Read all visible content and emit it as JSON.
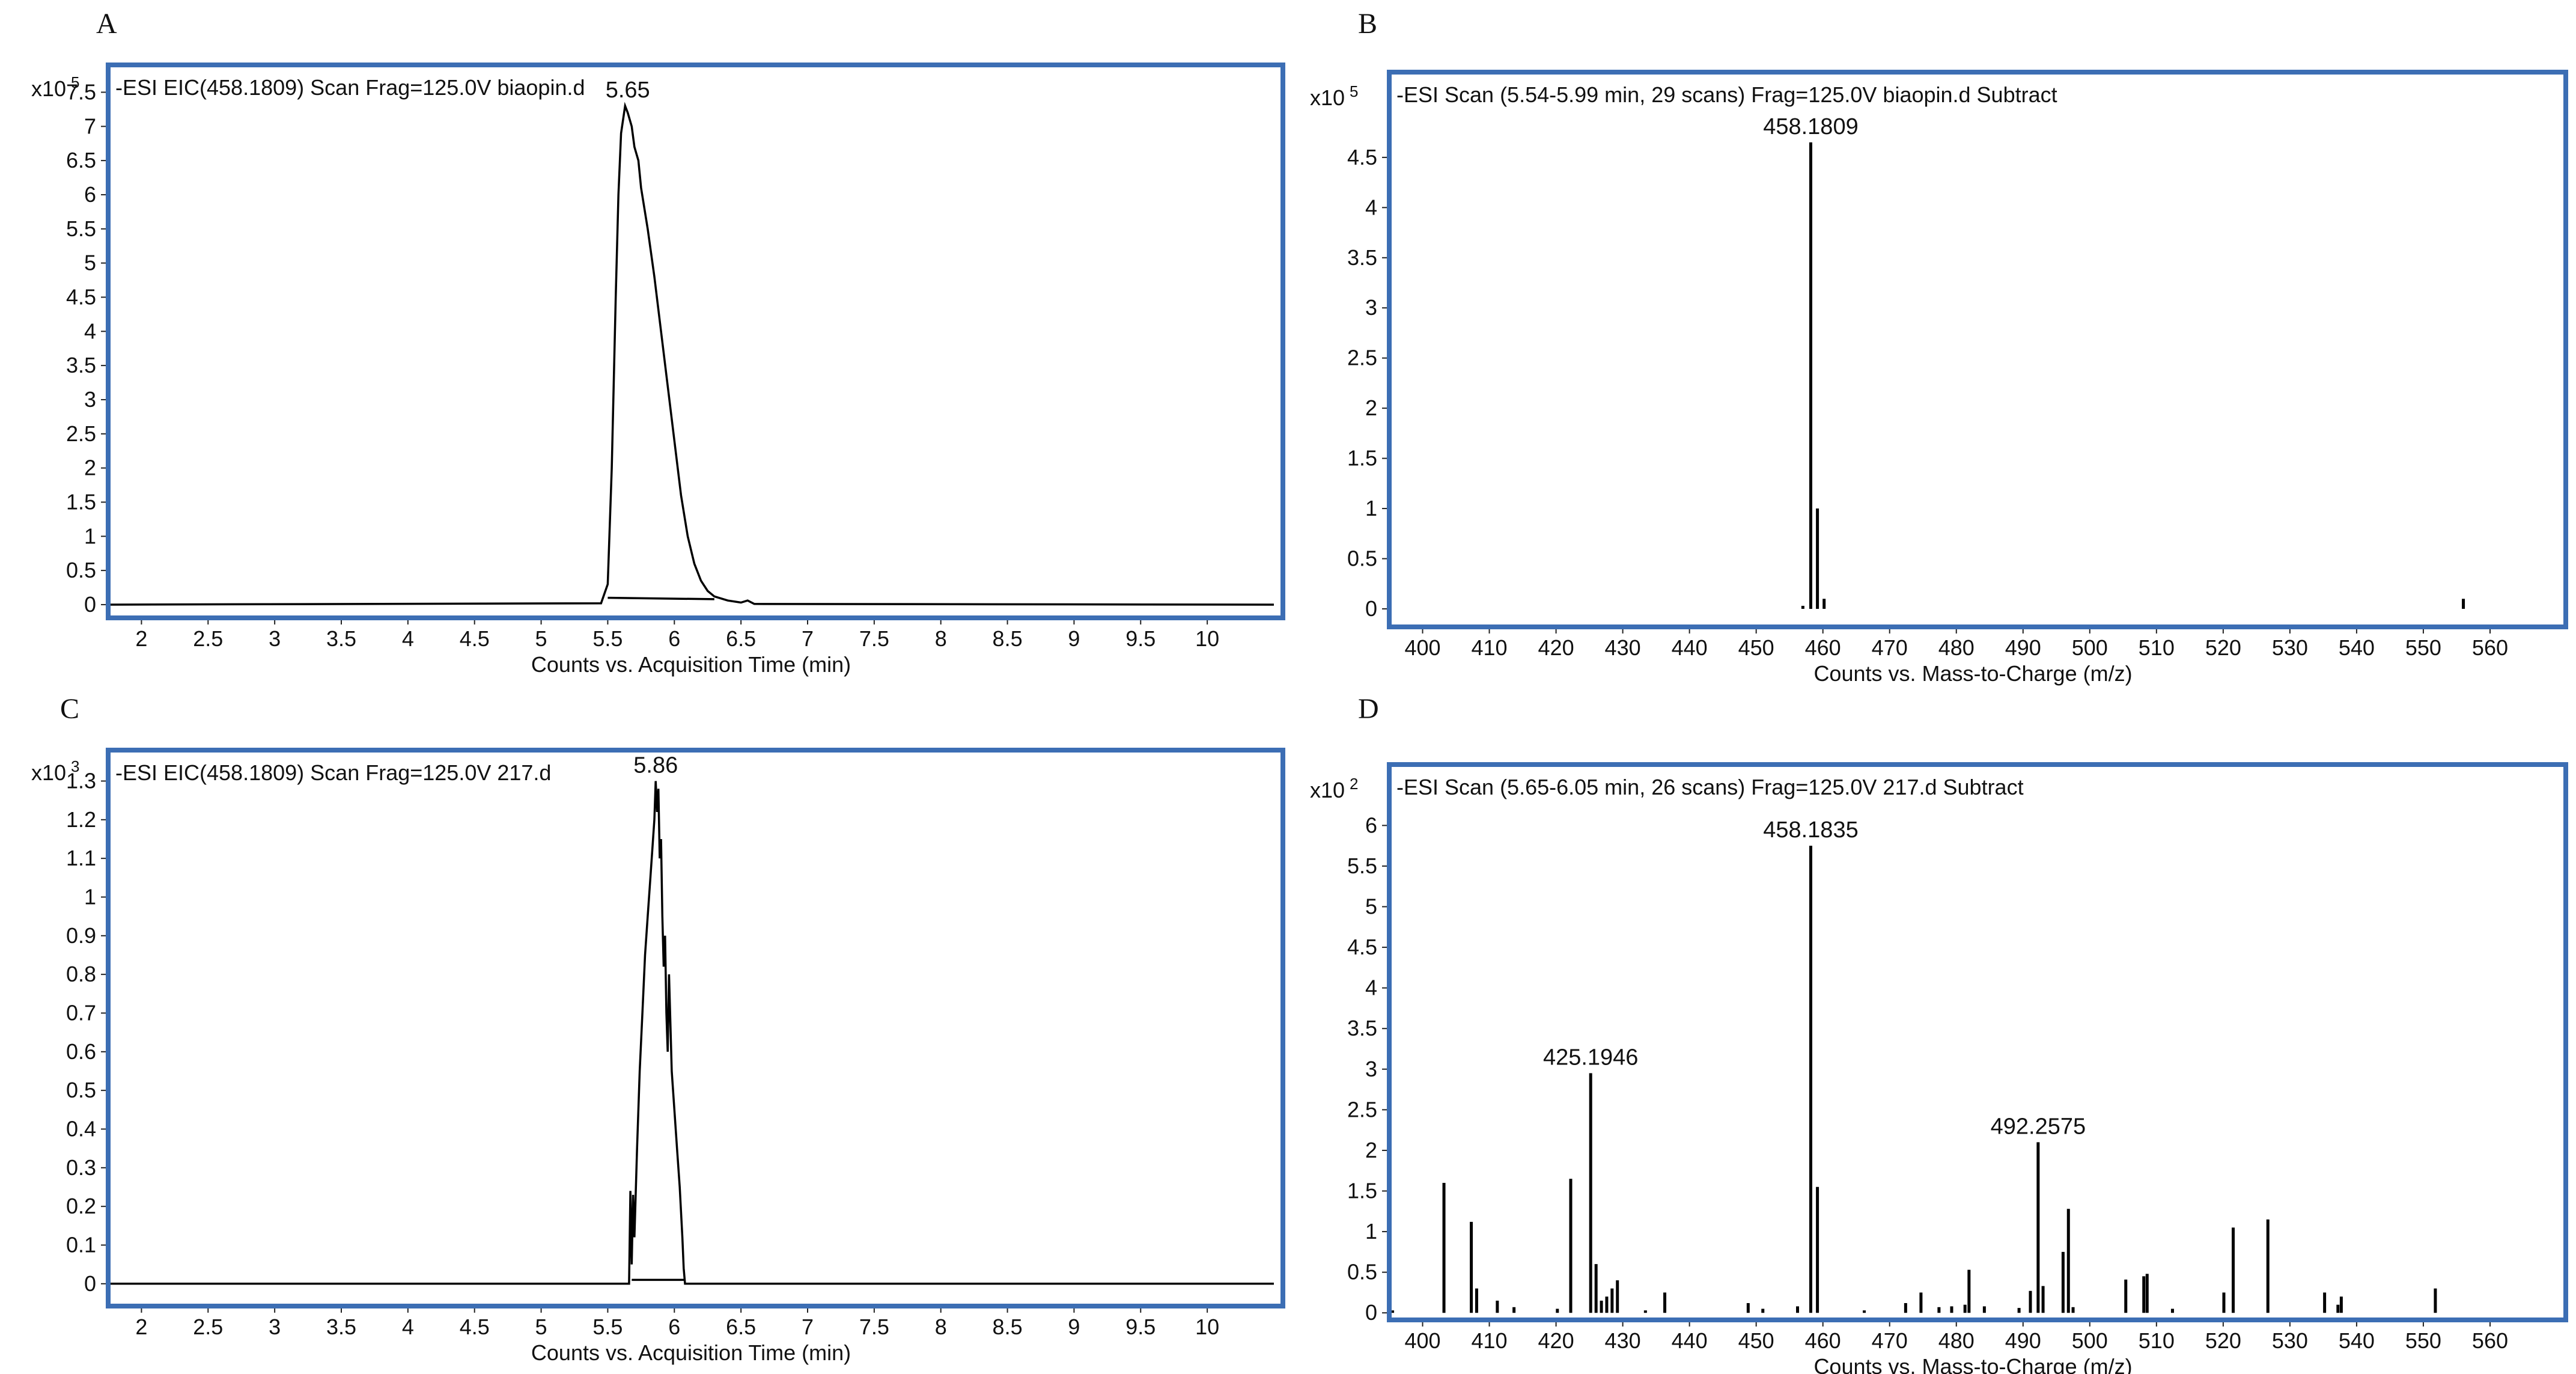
{
  "chart_data": [
    {
      "panel": "A",
      "type": "line",
      "annotation": "-ESI EIC(458.1809) Scan Frag=125.0V biaopin.d",
      "y_scale": {
        "base": "x10",
        "exponent": "5"
      },
      "xlabel": "Counts vs. Acquisition Time (min)",
      "xlim": [
        1.75,
        10.5
      ],
      "ylim": [
        -0.15,
        7.9
      ],
      "x_ticks": [
        2,
        2.5,
        3,
        3.5,
        4,
        4.5,
        5,
        5.5,
        6,
        6.5,
        7,
        7.5,
        8,
        8.5,
        9,
        9.5,
        10
      ],
      "x_tick_labels": [
        "2",
        "2.5",
        "3",
        "3.5",
        "4",
        "4.5",
        "5",
        "5.5",
        "6",
        "6.5",
        "7",
        "7.5",
        "8",
        "8.5",
        "9",
        "9.5",
        "10"
      ],
      "y_ticks": [
        0,
        0.5,
        1,
        1.5,
        2,
        2.5,
        3,
        3.5,
        4,
        4.5,
        5,
        5.5,
        6,
        6.5,
        7,
        7.5
      ],
      "y_tick_labels": [
        "0",
        "0.5",
        "1",
        "1.5",
        "2",
        "2.5",
        "3",
        "3.5",
        "4",
        "4.5",
        "5",
        "5.5",
        "6",
        "6.5",
        "7",
        "7.5"
      ],
      "peak_labels": [
        {
          "text": "5.65",
          "x": 5.65,
          "y": 7.3
        }
      ],
      "series": [
        {
          "x": [
            1.75,
            5.45,
            5.5,
            5.53,
            5.56,
            5.58,
            5.6,
            5.63,
            5.65,
            5.68,
            5.7,
            5.73,
            5.75,
            5.8,
            5.85,
            5.9,
            5.95,
            6.0,
            6.05,
            6.1,
            6.15,
            6.2,
            6.25,
            6.3,
            6.4,
            6.5,
            6.55,
            6.6,
            10.5
          ],
          "y": [
            0.0,
            0.02,
            0.3,
            2.0,
            4.5,
            6.0,
            6.9,
            7.3,
            7.2,
            7.0,
            6.7,
            6.5,
            6.1,
            5.5,
            4.8,
            4.0,
            3.2,
            2.4,
            1.6,
            1.0,
            0.6,
            0.35,
            0.2,
            0.12,
            0.06,
            0.03,
            0.06,
            0.01,
            0.0
          ]
        },
        {
          "x": [
            5.5,
            6.3
          ],
          "y": [
            0.1,
            0.08
          ]
        }
      ]
    },
    {
      "panel": "B",
      "type": "bar",
      "annotation": "-ESI Scan (5.54-5.99 min, 29 scans) Frag=125.0V biaopin.d  Subtract",
      "y_scale": {
        "base": "x10",
        "exponent": "5"
      },
      "xlabel": "Counts vs. Mass-to-Charge (m/z)",
      "xlim": [
        395,
        570
      ],
      "ylim": [
        -0.15,
        5.35
      ],
      "x_ticks": [
        400,
        410,
        420,
        430,
        440,
        450,
        460,
        470,
        480,
        490,
        500,
        510,
        520,
        530,
        540,
        550,
        560
      ],
      "x_tick_labels": [
        "400",
        "410",
        "420",
        "430",
        "440",
        "450",
        "460",
        "470",
        "480",
        "490",
        "500",
        "510",
        "520",
        "530",
        "540",
        "550",
        "560"
      ],
      "y_ticks": [
        0,
        0.5,
        1,
        1.5,
        2,
        2.5,
        3,
        3.5,
        4,
        4.5
      ],
      "y_tick_labels": [
        "0",
        "0.5",
        "1",
        "1.5",
        "2",
        "2.5",
        "3",
        "3.5",
        "4",
        "4.5"
      ],
      "peak_labels": [
        {
          "text": "458.1809",
          "x": 458.18,
          "y": 4.65
        }
      ],
      "x": [
        457.0,
        458.18,
        459.18,
        460.18,
        556.0
      ],
      "values": [
        0.03,
        4.65,
        1.0,
        0.1,
        0.1
      ]
    },
    {
      "panel": "C",
      "type": "line",
      "annotation": "-ESI EIC(458.1809) Scan Frag=125.0V 217.d",
      "y_scale": {
        "base": "x10",
        "exponent": "3"
      },
      "xlabel": "Counts vs. Acquisition Time (min)",
      "xlim": [
        1.75,
        10.5
      ],
      "ylim": [
        -0.05,
        1.38
      ],
      "x_ticks": [
        2,
        2.5,
        3,
        3.5,
        4,
        4.5,
        5,
        5.5,
        6,
        6.5,
        7,
        7.5,
        8,
        8.5,
        9,
        9.5,
        10
      ],
      "x_tick_labels": [
        "2",
        "2.5",
        "3",
        "3.5",
        "4",
        "4.5",
        "5",
        "5.5",
        "6",
        "6.5",
        "7",
        "7.5",
        "8",
        "8.5",
        "9",
        "9.5",
        "10"
      ],
      "y_ticks": [
        0,
        0.1,
        0.2,
        0.3,
        0.4,
        0.5,
        0.6,
        0.7,
        0.8,
        0.9,
        1,
        1.1,
        1.2,
        1.3
      ],
      "y_tick_labels": [
        "0",
        "0.1",
        "0.2",
        "0.3",
        "0.4",
        "0.5",
        "0.6",
        "0.7",
        "0.8",
        "0.9",
        "1",
        "1.1",
        "1.2",
        "1.3"
      ],
      "peak_labels": [
        {
          "text": "5.86",
          "x": 5.86,
          "y": 1.3
        }
      ],
      "series": [
        {
          "x": [
            1.75,
            5.66,
            5.67,
            5.68,
            5.69,
            5.7,
            5.72,
            5.74,
            5.76,
            5.78,
            5.8,
            5.82,
            5.84,
            5.85,
            5.86,
            5.87,
            5.88,
            5.89,
            5.9,
            5.91,
            5.92,
            5.93,
            5.94,
            5.95,
            5.96,
            5.98,
            6.0,
            6.02,
            6.04,
            6.06,
            6.07,
            6.08,
            10.5
          ],
          "y": [
            0.0,
            0.0,
            0.24,
            0.05,
            0.23,
            0.12,
            0.35,
            0.55,
            0.7,
            0.85,
            0.95,
            1.05,
            1.15,
            1.2,
            1.3,
            1.22,
            1.28,
            1.1,
            1.15,
            0.95,
            0.82,
            0.9,
            0.7,
            0.6,
            0.8,
            0.55,
            0.45,
            0.35,
            0.25,
            0.12,
            0.04,
            0.0,
            0.0
          ]
        },
        {
          "x": [
            5.68,
            6.08
          ],
          "y": [
            0.01,
            0.01
          ]
        }
      ]
    },
    {
      "panel": "D",
      "type": "bar",
      "annotation": "-ESI Scan (5.65-6.05 min, 26 scans) Frag=125.0V 217.d  Subtract",
      "y_scale": {
        "base": "x10",
        "exponent": "2"
      },
      "xlabel": "Counts vs. Mass-to-Charge (m/z)",
      "xlim": [
        395,
        570
      ],
      "ylim": [
        -0.05,
        6.75
      ],
      "x_ticks": [
        400,
        410,
        420,
        430,
        440,
        450,
        460,
        470,
        480,
        490,
        500,
        510,
        520,
        530,
        540,
        550,
        560
      ],
      "x_tick_labels": [
        "400",
        "410",
        "420",
        "430",
        "440",
        "450",
        "460",
        "470",
        "480",
        "490",
        "500",
        "510",
        "520",
        "530",
        "540",
        "550",
        "560"
      ],
      "y_ticks": [
        0,
        0.5,
        1,
        1.5,
        2,
        2.5,
        3,
        3.5,
        4,
        4.5,
        5,
        5.5,
        6
      ],
      "y_tick_labels": [
        "0",
        "0.5",
        "1",
        "1.5",
        "2",
        "2.5",
        "3",
        "3.5",
        "4",
        "4.5",
        "5",
        "5.5",
        "6"
      ],
      "peak_labels": [
        {
          "text": "425.1946",
          "x": 425.19,
          "y": 2.95
        },
        {
          "text": "458.1835",
          "x": 458.18,
          "y": 5.75
        },
        {
          "text": "492.2575",
          "x": 492.26,
          "y": 2.1
        }
      ],
      "x": [
        395.5,
        403.2,
        407.3,
        408.1,
        411.2,
        413.7,
        420.2,
        422.2,
        425.19,
        426.0,
        426.8,
        427.6,
        428.4,
        429.2,
        433.4,
        436.3,
        448.8,
        451.0,
        456.2,
        458.18,
        459.18,
        466.2,
        472.4,
        474.7,
        477.4,
        479.3,
        481.3,
        481.9,
        484.2,
        489.4,
        491.1,
        492.26,
        493.0,
        496.0,
        496.8,
        497.5,
        505.4,
        508.1,
        508.6,
        512.4,
        520.1,
        521.5,
        526.7,
        535.2,
        537.2,
        537.7,
        551.8
      ],
      "values": [
        0.03,
        1.6,
        1.12,
        0.3,
        0.15,
        0.07,
        0.05,
        1.65,
        2.95,
        0.6,
        0.15,
        0.2,
        0.3,
        0.4,
        0.03,
        0.25,
        0.12,
        0.05,
        0.08,
        5.75,
        1.55,
        0.03,
        0.12,
        0.25,
        0.07,
        0.08,
        0.1,
        0.53,
        0.08,
        0.06,
        0.27,
        2.1,
        0.33,
        0.75,
        1.28,
        0.07,
        0.41,
        0.45,
        0.48,
        0.05,
        0.25,
        1.05,
        1.15,
        0.25,
        0.1,
        0.2,
        0.3
      ]
    }
  ]
}
